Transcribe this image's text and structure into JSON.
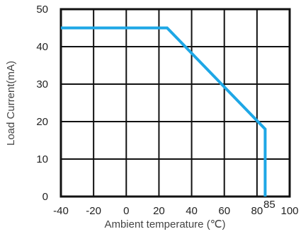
{
  "chart_data": {
    "type": "line",
    "xlabel": "Ambient temperature (℃)",
    "ylabel": "Load Current(mA)",
    "xlim": [
      -40,
      100
    ],
    "ylim": [
      0,
      50
    ],
    "x_ticks": [
      "-40",
      "-20",
      "0",
      "20",
      "40",
      "60",
      "80",
      "100"
    ],
    "x_tick_values": [
      -40,
      -20,
      0,
      20,
      40,
      60,
      80,
      100
    ],
    "extra_x_tick": {
      "label": "85",
      "value": 85
    },
    "y_ticks": [
      "0",
      "10",
      "20",
      "30",
      "40",
      "50"
    ],
    "y_tick_values": [
      0,
      10,
      20,
      30,
      40,
      50
    ],
    "grid": true,
    "series": [
      {
        "x": [
          -40,
          25,
          85,
          85
        ],
        "y": [
          45,
          45,
          18,
          0
        ],
        "color": "#1ea7e6"
      }
    ],
    "colors": {
      "line": "#1ea7e6",
      "grid": "#111111",
      "frame": "#111111"
    }
  }
}
